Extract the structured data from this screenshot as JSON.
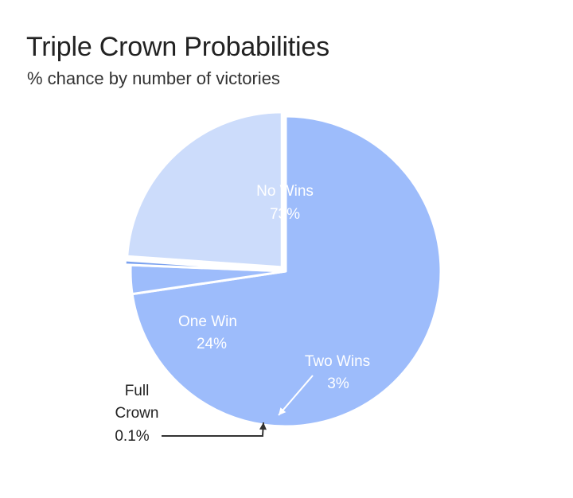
{
  "chart_data": {
    "type": "pie",
    "title": "Triple Crown Probabilities",
    "subtitle": "% chance by number of victories",
    "slices": [
      {
        "name": "No Wins",
        "value": 73,
        "value_label": "73%",
        "color": "#9dbcfb",
        "label_color": "#ffffff",
        "exploded": false
      },
      {
        "name": "Two Wins",
        "value": 3,
        "value_label": "3%",
        "color": "#9dbcfb",
        "label_color": "#ffffff",
        "exploded": false
      },
      {
        "name": "Full Crown",
        "value": 0.1,
        "value_label": "0.1%",
        "color": "#7ba2ef",
        "label_color": "#222222",
        "exploded": true
      },
      {
        "name": "One Win",
        "value": 24,
        "value_label": "24%",
        "color": "#ccdcfb",
        "label_color": "#ffffff",
        "exploded": true
      }
    ]
  }
}
